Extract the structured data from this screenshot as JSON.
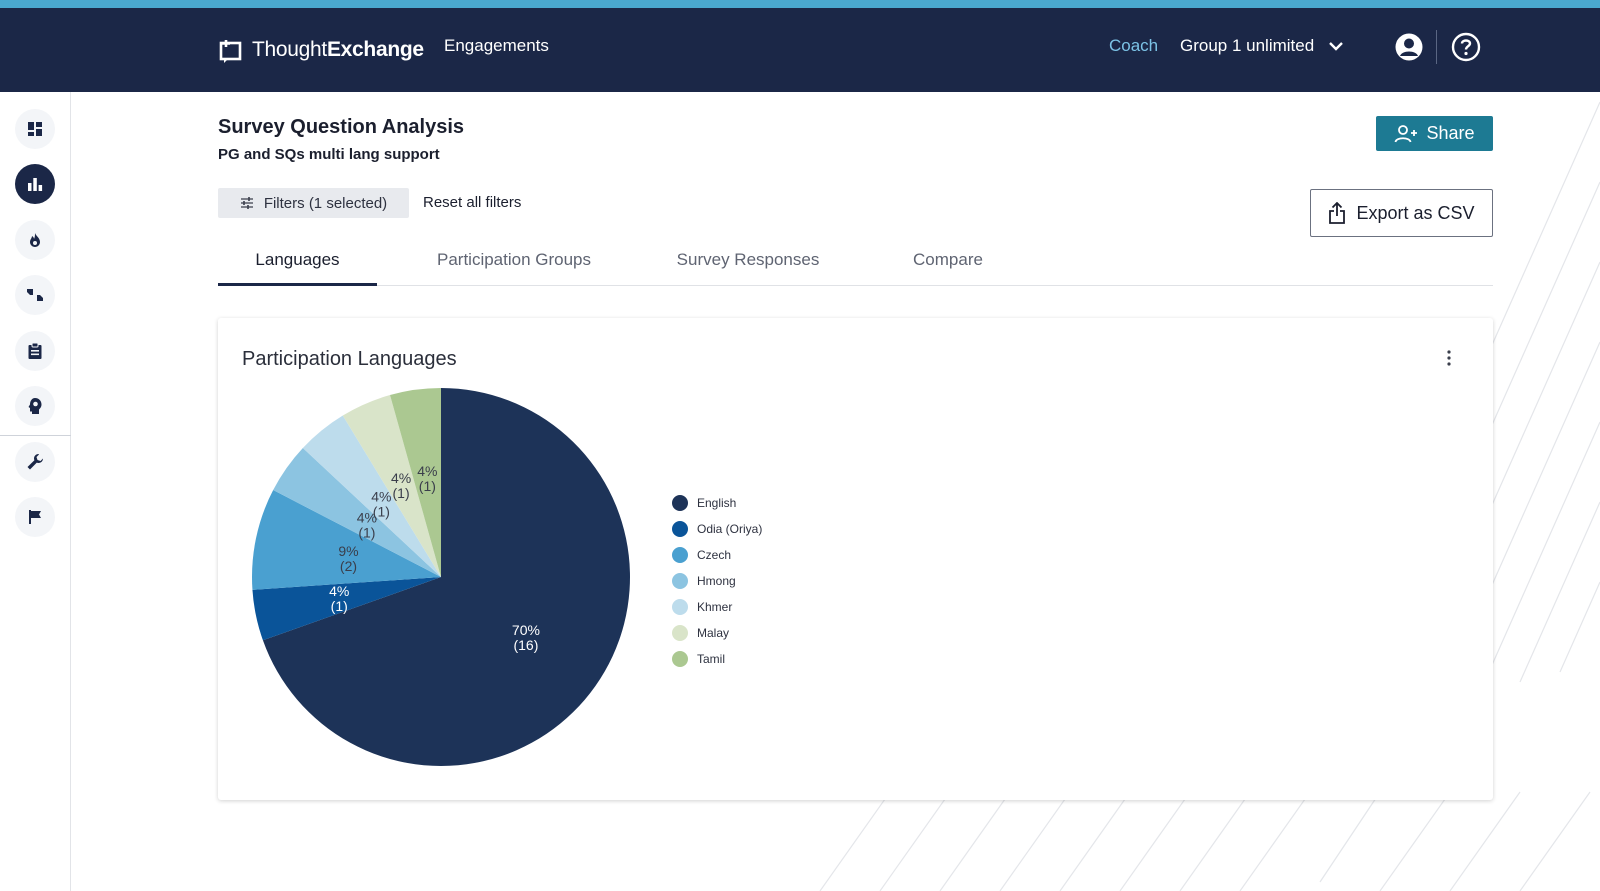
{
  "header": {
    "logo_light": "Thought",
    "logo_bold": "Exchange",
    "engagements": "Engagements",
    "coach": "Coach",
    "group": "Group 1 unlimited"
  },
  "page": {
    "title": "Survey Question Analysis",
    "subtitle": "PG and SQs multi lang support",
    "share": "Share",
    "filters": "Filters (1 selected)",
    "reset": "Reset all filters",
    "export": "Export as CSV"
  },
  "tabs": [
    {
      "label": "Languages",
      "active": true
    },
    {
      "label": "Participation Groups",
      "active": false
    },
    {
      "label": "Survey Responses",
      "active": false
    },
    {
      "label": "Compare",
      "active": false
    }
  ],
  "sidebar": {
    "icons": [
      "dashboard-icon",
      "bar-chart-icon",
      "fire-icon",
      "thumbs-icon",
      "clipboard-icon",
      "lightbulb-head-icon",
      "wrench-icon",
      "flag-icon"
    ]
  },
  "chart_data": {
    "type": "pie",
    "title": "Participation Languages",
    "legend_position": "right",
    "slices": [
      {
        "name": "English",
        "value": 16,
        "percent": "70%",
        "count": "(16)",
        "color": "#1d3358"
      },
      {
        "name": "Odia (Oriya)",
        "value": 1,
        "percent": "4%",
        "count": "(1)",
        "color": "#0a5499"
      },
      {
        "name": "Czech",
        "value": 2,
        "percent": "9%",
        "count": "(2)",
        "color": "#4aa0d0"
      },
      {
        "name": "Hmong",
        "value": 1,
        "percent": "4%",
        "count": "(1)",
        "color": "#8cc4e1"
      },
      {
        "name": "Khmer",
        "value": 1,
        "percent": "4%",
        "count": "(1)",
        "color": "#bddcec"
      },
      {
        "name": "Malay",
        "value": 1,
        "percent": "4%",
        "count": "(1)",
        "color": "#d9e4c9"
      },
      {
        "name": "Tamil",
        "value": 1,
        "percent": "4%",
        "count": "(1)",
        "color": "#abc891"
      }
    ]
  }
}
